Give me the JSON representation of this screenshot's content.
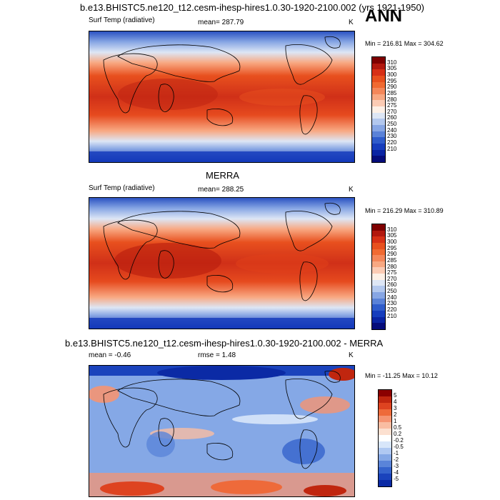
{
  "figure": {
    "top_title": "b.e13.BHISTC5.ne120_t12.cesm-ihesp-hires1.0.30-1920-2100.002 (yrs 1921-1950)",
    "season": "ANN"
  },
  "panels": [
    {
      "title": "",
      "left_label": "Surf Temp (radiative)",
      "center_label": "mean= 287.79",
      "units": "K",
      "minmax": "Min = 216.81 Max = 304.62",
      "field_style": "temperature",
      "colorbar": {
        "labels": [
          "310",
          "305",
          "300",
          "295",
          "290",
          "285",
          "280",
          "275",
          "270",
          "260",
          "250",
          "240",
          "230",
          "220",
          "210"
        ],
        "colors": [
          "#7f0000",
          "#b2180e",
          "#d73016",
          "#e8501e",
          "#f06a32",
          "#f4875a",
          "#f8a882",
          "#fbcbb4",
          "#fdf0e6",
          "#dde6f5",
          "#b3c8ee",
          "#87a6e4",
          "#5a82d8",
          "#2f5ccb",
          "#163dbd",
          "#0a24a3",
          "#050c7a"
        ]
      }
    },
    {
      "title": "MERRA",
      "left_label": "Surf Temp (radiative)",
      "center_label": "mean= 288.25",
      "units": "K",
      "minmax": "Min = 216.29 Max = 310.89",
      "field_style": "temperature",
      "colorbar": {
        "labels": [
          "310",
          "305",
          "300",
          "295",
          "290",
          "285",
          "280",
          "275",
          "270",
          "260",
          "250",
          "240",
          "230",
          "220",
          "210"
        ],
        "colors": [
          "#7f0000",
          "#b2180e",
          "#d73016",
          "#e8501e",
          "#f06a32",
          "#f4875a",
          "#f8a882",
          "#fbcbb4",
          "#fdf0e6",
          "#dde6f5",
          "#b3c8ee",
          "#87a6e4",
          "#5a82d8",
          "#2f5ccb",
          "#163dbd",
          "#0a24a3",
          "#050c7a"
        ]
      }
    },
    {
      "title": "b.e13.BHISTC5.ne120_t12.cesm-ihesp-hires1.0.30-1920-2100.002 - MERRA",
      "left_label": "mean = -0.46",
      "center_label": "rmse = 1.48",
      "units": "K",
      "minmax": "Min = -11.25 Max = 10.12",
      "field_style": "difference",
      "colorbar": {
        "labels": [
          "5",
          "4",
          "3",
          "2",
          "1",
          "0.5",
          "0.2",
          "-0.2",
          "-0.5",
          "-1",
          "-2",
          "-3",
          "-4",
          "-5"
        ],
        "colors": [
          "#8b0000",
          "#c0260f",
          "#de4320",
          "#ee6a3a",
          "#f59472",
          "#f9bda2",
          "#fce0d0",
          "#ffffff",
          "#d8e6fa",
          "#b0c9f2",
          "#85a8e6",
          "#5a84d9",
          "#3563cc",
          "#1a43bc",
          "#0b2aa5"
        ]
      }
    }
  ]
}
